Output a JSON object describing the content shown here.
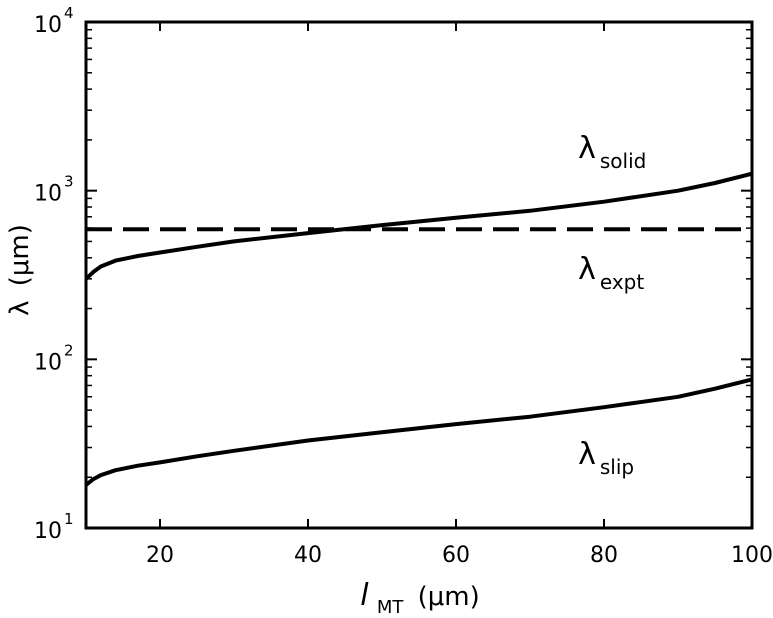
{
  "chart_data": {
    "type": "line",
    "xlabel": {
      "symbol": "l",
      "subscript": "MT",
      "unit": "(μm)"
    },
    "ylabel": {
      "symbol": "λ",
      "unit": "(μm)"
    },
    "xlim": [
      10,
      100
    ],
    "ylim": [
      10,
      10000
    ],
    "yscale": "log",
    "grid": false,
    "xticks": [
      {
        "value": 20,
        "label": "20"
      },
      {
        "value": 40,
        "label": "40"
      },
      {
        "value": 60,
        "label": "60"
      },
      {
        "value": 80,
        "label": "80"
      },
      {
        "value": 100,
        "label": "100"
      }
    ],
    "yticks": [
      {
        "value": 10,
        "base": "10",
        "exp": "1"
      },
      {
        "value": 100,
        "base": "10",
        "exp": "2"
      },
      {
        "value": 1000,
        "base": "10",
        "exp": "3"
      },
      {
        "value": 10000,
        "base": "10",
        "exp": "4"
      }
    ],
    "series": [
      {
        "name": "solid",
        "label_symbol": "λ",
        "label_sub": "solid",
        "style": "solid",
        "color": "#000000",
        "x": [
          10,
          11,
          12,
          14,
          17,
          20,
          25,
          30,
          40,
          50,
          60,
          70,
          80,
          90,
          95,
          100
        ],
        "y": [
          300,
          330,
          355,
          385,
          410,
          430,
          465,
          500,
          560,
          625,
          690,
          760,
          860,
          1000,
          1110,
          1260
        ]
      },
      {
        "name": "expt",
        "label_symbol": "λ",
        "label_sub": "expt",
        "style": "dashed",
        "color": "#000000",
        "x": [
          10,
          100
        ],
        "y": [
          590,
          590
        ]
      },
      {
        "name": "slip",
        "label_symbol": "λ",
        "label_sub": "slip",
        "style": "solid",
        "color": "#000000",
        "x": [
          10,
          11,
          12,
          14,
          17,
          20,
          25,
          30,
          40,
          50,
          60,
          70,
          80,
          90,
          95,
          100
        ],
        "y": [
          18,
          19.5,
          20.6,
          22,
          23.4,
          24.5,
          26.6,
          28.7,
          33,
          37,
          41.3,
          45.7,
          52,
          60,
          67,
          76
        ]
      }
    ],
    "labels": [
      {
        "series": "solid",
        "symbol": "λ",
        "sub": "solid",
        "x": 76.5,
        "y": 1560
      },
      {
        "series": "expt",
        "symbol": "λ",
        "sub": "expt",
        "x": 76.5,
        "y": 300
      },
      {
        "series": "slip",
        "symbol": "λ",
        "sub": "slip",
        "x": 76.5,
        "y": 24
      }
    ]
  }
}
